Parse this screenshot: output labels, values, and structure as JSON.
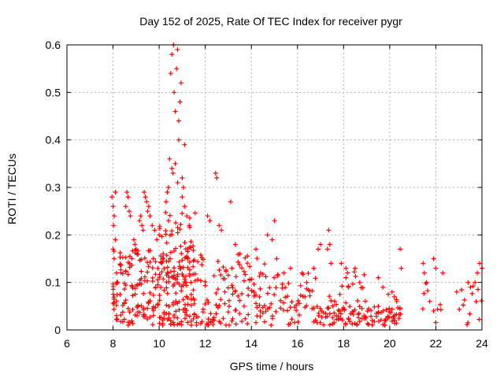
{
  "chart_data": {
    "type": "scatter",
    "title": "Day 152 of 2025, Rate Of TEC Index for receiver pygr",
    "xlabel": "GPS time / hours",
    "ylabel": "ROTI / TECUs",
    "xlim": [
      6,
      24
    ],
    "ylim": [
      0,
      0.6
    ],
    "x_ticks": [
      "6",
      "8",
      "10",
      "12",
      "14",
      "16",
      "18",
      "20",
      "22",
      "24"
    ],
    "y_ticks": [
      "0",
      "0.1",
      "0.2",
      "0.3",
      "0.4",
      "0.5",
      "0.6"
    ],
    "grid": true,
    "marker": "+",
    "point_color": "#ff0000",
    "series": [
      {
        "points": [
          [
            7.95,
            0.28
          ],
          [
            8.0,
            0.26
          ],
          [
            8.02,
            0.22
          ],
          [
            8.05,
            0.24
          ],
          [
            8.1,
            0.29
          ],
          [
            8.0,
            0.17
          ],
          [
            8.05,
            0.15
          ],
          [
            8.1,
            0.19
          ],
          [
            8.15,
            0.12
          ],
          [
            8.2,
            0.1
          ],
          [
            8.6,
            0.29
          ],
          [
            8.65,
            0.28
          ],
          [
            8.7,
            0.25
          ],
          [
            8.55,
            0.26
          ],
          [
            8.75,
            0.24
          ],
          [
            8.9,
            0.19
          ],
          [
            8.95,
            0.18
          ],
          [
            9.0,
            0.17
          ],
          [
            9.05,
            0.16
          ],
          [
            9.15,
            0.23
          ],
          [
            9.2,
            0.24
          ],
          [
            9.25,
            0.22
          ],
          [
            9.3,
            0.21
          ],
          [
            9.35,
            0.29
          ],
          [
            9.4,
            0.28
          ],
          [
            9.45,
            0.27
          ],
          [
            9.5,
            0.25
          ],
          [
            9.55,
            0.26
          ],
          [
            9.6,
            0.24
          ],
          [
            9.7,
            0.22
          ],
          [
            9.8,
            0.21
          ],
          [
            9.9,
            0.19
          ],
          [
            10.0,
            0.2
          ],
          [
            10.3,
            0.27
          ],
          [
            10.35,
            0.29
          ],
          [
            10.4,
            0.3
          ],
          [
            10.45,
            0.36
          ],
          [
            10.5,
            0.54
          ],
          [
            10.55,
            0.58
          ],
          [
            10.6,
            0.62
          ],
          [
            10.62,
            0.6
          ],
          [
            10.65,
            0.5
          ],
          [
            10.7,
            0.46
          ],
          [
            10.75,
            0.55
          ],
          [
            10.8,
            0.59
          ],
          [
            10.85,
            0.44
          ],
          [
            10.85,
            0.4
          ],
          [
            10.9,
            0.48
          ],
          [
            10.95,
            0.52
          ],
          [
            11.0,
            0.32
          ],
          [
            11.05,
            0.3
          ],
          [
            11.1,
            0.39
          ],
          [
            10.55,
            0.34
          ],
          [
            10.6,
            0.33
          ],
          [
            10.7,
            0.35
          ],
          [
            10.8,
            0.31
          ],
          [
            11.0,
            0.28
          ],
          [
            11.1,
            0.26
          ],
          [
            11.2,
            0.24
          ],
          [
            11.3,
            0.22
          ],
          [
            12.45,
            0.33
          ],
          [
            12.5,
            0.32
          ],
          [
            12.1,
            0.24
          ],
          [
            12.2,
            0.23
          ],
          [
            12.6,
            0.22
          ],
          [
            12.7,
            0.21
          ],
          [
            13.1,
            0.27
          ],
          [
            13.3,
            0.18
          ],
          [
            13.5,
            0.16
          ],
          [
            14.7,
            0.2
          ],
          [
            14.9,
            0.19
          ],
          [
            15.0,
            0.23
          ],
          [
            15.1,
            0.15
          ],
          [
            14.2,
            0.17
          ],
          [
            14.4,
            0.12
          ],
          [
            15.4,
            0.12
          ],
          [
            15.7,
            0.13
          ],
          [
            16.2,
            0.12
          ],
          [
            16.4,
            0.1
          ],
          [
            16.7,
            0.13
          ],
          [
            16.9,
            0.17
          ],
          [
            17.0,
            0.18
          ],
          [
            17.3,
            0.17
          ],
          [
            17.35,
            0.21
          ],
          [
            17.4,
            0.18
          ],
          [
            17.45,
            0.14
          ],
          [
            17.9,
            0.14
          ],
          [
            18.1,
            0.11
          ],
          [
            18.1,
            0.13
          ],
          [
            18.2,
            0.09
          ],
          [
            18.5,
            0.13
          ],
          [
            18.7,
            0.1
          ],
          [
            19.5,
            0.11
          ],
          [
            19.7,
            0.09
          ],
          [
            20.1,
            0.08
          ],
          [
            20.2,
            0.07
          ],
          [
            20.3,
            0.06
          ],
          [
            20.45,
            0.17
          ],
          [
            20.5,
            0.13
          ],
          [
            21.45,
            0.14
          ],
          [
            21.5,
            0.12
          ],
          [
            21.6,
            0.1
          ],
          [
            21.9,
            0.15
          ],
          [
            22.0,
            0.13
          ],
          [
            22.3,
            0.12
          ],
          [
            22.9,
            0.08
          ],
          [
            23.4,
            0.1
          ],
          [
            23.5,
            0.09
          ],
          [
            23.7,
            0.1
          ],
          [
            23.8,
            0.12
          ],
          [
            23.9,
            0.14
          ],
          [
            24.0,
            0.13
          ]
        ]
      }
    ],
    "dense_bands": [
      {
        "x": [
          7.95,
          11.6
        ],
        "y": [
          0.01,
          0.17
        ],
        "density": 5
      },
      {
        "x": [
          10.0,
          11.6
        ],
        "y": [
          0.1,
          0.25
        ],
        "density": 3
      },
      {
        "x": [
          11.6,
          14.6
        ],
        "y": [
          0.01,
          0.16
        ],
        "density": 3
      },
      {
        "x": [
          14.6,
          16.8
        ],
        "y": [
          0.01,
          0.12
        ],
        "density": 2
      },
      {
        "x": [
          16.8,
          20.5
        ],
        "y": [
          0.01,
          0.05
        ],
        "density": 2
      },
      {
        "x": [
          17.3,
          19.0
        ],
        "y": [
          0.03,
          0.14
        ],
        "density": 1
      },
      {
        "x": [
          19.8,
          20.5
        ],
        "y": [
          0.02,
          0.09
        ],
        "density": 1
      },
      {
        "x": [
          21.4,
          21.8
        ],
        "y": [
          0.01,
          0.1
        ],
        "density": 1
      },
      {
        "x": [
          21.9,
          22.3
        ],
        "y": [
          0.01,
          0.06
        ],
        "density": 1
      },
      {
        "x": [
          23.0,
          24.0
        ],
        "y": [
          0.01,
          0.1
        ],
        "density": 1
      }
    ]
  }
}
